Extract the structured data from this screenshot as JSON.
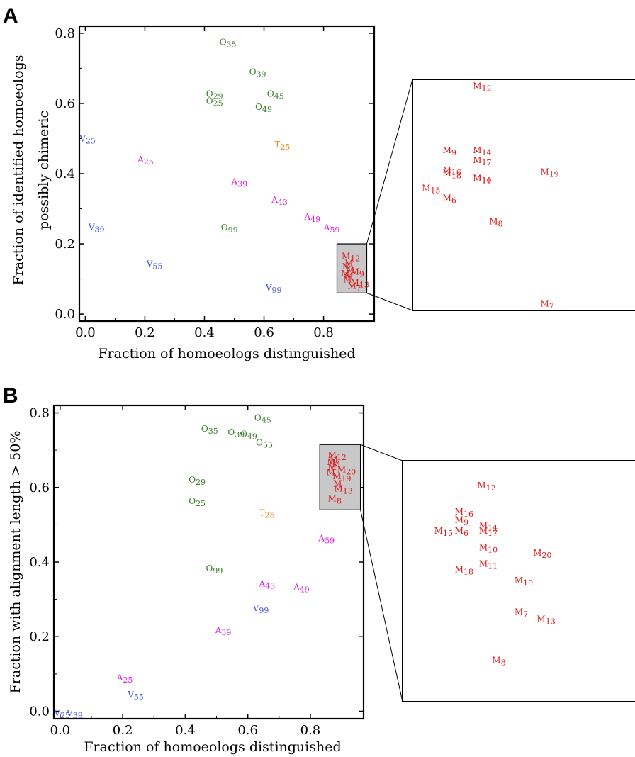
{
  "colors": {
    "M": "#dd1a1a",
    "O": "#3a7d2a",
    "V": "#4a52d6",
    "A": "#e020e0",
    "T": "#ee8c20"
  },
  "chart_data": [
    {
      "panel": "A",
      "type": "scatter",
      "xlabel": "Fraction of homoeologs distinguished",
      "ylabel": [
        "Fraction of identified homoeologs",
        "possibly chimeric"
      ],
      "xlim": [
        -0.02,
        0.97
      ],
      "ylim": [
        -0.02,
        0.82
      ],
      "xticks": [
        "0.0",
        "0.2",
        "0.4",
        "0.6",
        "0.8"
      ],
      "yticks": [
        "0.0",
        "0.2",
        "0.4",
        "0.6",
        "0.8"
      ],
      "points": [
        {
          "l": "O",
          "n": "35",
          "x": 0.46,
          "y": 0.775
        },
        {
          "l": "O",
          "n": "39",
          "x": 0.56,
          "y": 0.69
        },
        {
          "l": "O",
          "n": "29",
          "x": 0.415,
          "y": 0.627
        },
        {
          "l": "O",
          "n": "45",
          "x": 0.62,
          "y": 0.627
        },
        {
          "l": "O",
          "n": "25",
          "x": 0.415,
          "y": 0.607
        },
        {
          "l": "O",
          "n": "49",
          "x": 0.58,
          "y": 0.59
        },
        {
          "l": "V",
          "n": "25",
          "x": -0.01,
          "y": 0.5
        },
        {
          "l": "T",
          "n": "25",
          "x": 0.645,
          "y": 0.483
        },
        {
          "l": "A",
          "n": "25",
          "x": 0.185,
          "y": 0.44
        },
        {
          "l": "A",
          "n": "39",
          "x": 0.5,
          "y": 0.377
        },
        {
          "l": "A",
          "n": "43",
          "x": 0.635,
          "y": 0.325
        },
        {
          "l": "A",
          "n": "49",
          "x": 0.745,
          "y": 0.277
        },
        {
          "l": "A",
          "n": "59",
          "x": 0.81,
          "y": 0.247
        },
        {
          "l": "V",
          "n": "39",
          "x": 0.02,
          "y": 0.248
        },
        {
          "l": "O",
          "n": "99",
          "x": 0.465,
          "y": 0.247
        },
        {
          "l": "V",
          "n": "55",
          "x": 0.215,
          "y": 0.143
        },
        {
          "l": "V",
          "n": "99",
          "x": 0.615,
          "y": 0.075
        }
      ],
      "cluster": [
        {
          "l": "M",
          "n": "12",
          "x": 0.87,
          "y": 0.165
        },
        {
          "l": "M",
          "n": "",
          "x": 0.88,
          "y": 0.145
        },
        {
          "l": "M",
          "n": "",
          "x": 0.872,
          "y": 0.135
        },
        {
          "l": "M",
          "n": "",
          "x": 0.885,
          "y": 0.125
        },
        {
          "l": "M",
          "n": "9",
          "x": 0.9,
          "y": 0.12
        },
        {
          "l": "M",
          "n": "",
          "x": 0.868,
          "y": 0.115
        },
        {
          "l": "M",
          "n": "",
          "x": 0.88,
          "y": 0.108
        },
        {
          "l": "M",
          "n": "",
          "x": 0.875,
          "y": 0.098
        },
        {
          "l": "M",
          "n": "13",
          "x": 0.9,
          "y": 0.09
        },
        {
          "l": "M",
          "n": "7",
          "x": 0.89,
          "y": 0.08
        }
      ],
      "zoom_box": {
        "x0": 0.845,
        "x1": 0.945,
        "y0": 0.06,
        "y1": 0.2
      },
      "zoom_points": [
        {
          "l": "M",
          "n": "12",
          "x": 0.871,
          "y": 0.196
        },
        {
          "l": "M",
          "n": "9",
          "x": 0.858,
          "y": 0.157
        },
        {
          "l": "M",
          "n": "14",
          "x": 0.871,
          "y": 0.157
        },
        {
          "l": "M",
          "n": "17",
          "x": 0.871,
          "y": 0.151
        },
        {
          "l": "M",
          "n": "16",
          "x": 0.858,
          "y": 0.145
        },
        {
          "l": "M",
          "n": "18",
          "x": 0.858,
          "y": 0.143
        },
        {
          "l": "M",
          "n": "10",
          "x": 0.871,
          "y": 0.14
        },
        {
          "l": "M",
          "n": "11",
          "x": 0.871,
          "y": 0.14
        },
        {
          "l": "M",
          "n": "19",
          "x": 0.9,
          "y": 0.144
        },
        {
          "l": "M",
          "n": "15",
          "x": 0.849,
          "y": 0.134
        },
        {
          "l": "M",
          "n": "6",
          "x": 0.858,
          "y": 0.128
        },
        {
          "l": "M",
          "n": "8",
          "x": 0.878,
          "y": 0.114
        },
        {
          "l": "M",
          "n": "7",
          "x": 0.9,
          "y": 0.064
        },
        {
          "l": "M",
          "n": "",
          "x": 0.943,
          "y": 0.098
        }
      ]
    },
    {
      "panel": "B",
      "type": "scatter",
      "xlabel": "Fraction of homoeologs distinguished",
      "ylabel": [
        "Fraction with alignment length > 50%"
      ],
      "xlim": [
        -0.02,
        0.97
      ],
      "ylim": [
        -0.02,
        0.82
      ],
      "xticks": [
        "0.0",
        "0.2",
        "0.4",
        "0.6",
        "0.8"
      ],
      "yticks": [
        "0.0",
        "0.2",
        "0.4",
        "0.6",
        "0.8"
      ],
      "points": [
        {
          "l": "O",
          "n": "45",
          "x": 0.63,
          "y": 0.787
        },
        {
          "l": "O",
          "n": "35",
          "x": 0.46,
          "y": 0.757
        },
        {
          "l": "O",
          "n": "39",
          "x": 0.545,
          "y": 0.748
        },
        {
          "l": "O",
          "n": "49",
          "x": 0.585,
          "y": 0.743
        },
        {
          "l": "O",
          "n": "55",
          "x": 0.635,
          "y": 0.72
        },
        {
          "l": "O",
          "n": "29",
          "x": 0.42,
          "y": 0.62
        },
        {
          "l": "O",
          "n": "25",
          "x": 0.42,
          "y": 0.563
        },
        {
          "l": "T",
          "n": "25",
          "x": 0.645,
          "y": 0.532
        },
        {
          "l": "A",
          "n": "59",
          "x": 0.835,
          "y": 0.464
        },
        {
          "l": "O",
          "n": "99",
          "x": 0.475,
          "y": 0.383
        },
        {
          "l": "A",
          "n": "43",
          "x": 0.645,
          "y": 0.342
        },
        {
          "l": "A",
          "n": "49",
          "x": 0.755,
          "y": 0.333
        },
        {
          "l": "V",
          "n": "99",
          "x": 0.625,
          "y": 0.276
        },
        {
          "l": "A",
          "n": "39",
          "x": 0.505,
          "y": 0.218
        },
        {
          "l": "A",
          "n": "25",
          "x": 0.19,
          "y": 0.09
        },
        {
          "l": "V",
          "n": "55",
          "x": 0.225,
          "y": 0.045
        },
        {
          "l": "V",
          "n": "25",
          "x": -0.01,
          "y": -0.005
        },
        {
          "l": "V",
          "n": "39",
          "x": 0.03,
          "y": -0.005
        }
      ],
      "cluster": [
        {
          "l": "M",
          "n": "12",
          "x": 0.865,
          "y": 0.687
        },
        {
          "l": "M",
          "n": "",
          "x": 0.87,
          "y": 0.675
        },
        {
          "l": "M",
          "n": "",
          "x": 0.862,
          "y": 0.668
        },
        {
          "l": "M",
          "n": "",
          "x": 0.878,
          "y": 0.662
        },
        {
          "l": "M",
          "n": "",
          "x": 0.865,
          "y": 0.655
        },
        {
          "l": "M",
          "n": "20",
          "x": 0.895,
          "y": 0.648
        },
        {
          "l": "M",
          "n": "",
          "x": 0.86,
          "y": 0.64
        },
        {
          "l": "M",
          "n": "19",
          "x": 0.88,
          "y": 0.63
        },
        {
          "l": "M",
          "n": "",
          "x": 0.882,
          "y": 0.61
        },
        {
          "l": "M",
          "n": "13",
          "x": 0.885,
          "y": 0.597
        },
        {
          "l": "M",
          "n": "8",
          "x": 0.865,
          "y": 0.57
        }
      ],
      "zoom_box": {
        "x0": 0.83,
        "x1": 0.96,
        "y0": 0.54,
        "y1": 0.715
      },
      "zoom_points": [
        {
          "l": "M",
          "n": "12",
          "x": 0.87,
          "y": 0.697
        },
        {
          "l": "M",
          "n": "16",
          "x": 0.858,
          "y": 0.678
        },
        {
          "l": "M",
          "n": "9",
          "x": 0.858,
          "y": 0.672
        },
        {
          "l": "M",
          "n": "14",
          "x": 0.871,
          "y": 0.668
        },
        {
          "l": "M",
          "n": "15",
          "x": 0.847,
          "y": 0.664
        },
        {
          "l": "M",
          "n": "6",
          "x": 0.858,
          "y": 0.664
        },
        {
          "l": "M",
          "n": "17",
          "x": 0.871,
          "y": 0.664
        },
        {
          "l": "M",
          "n": "10",
          "x": 0.871,
          "y": 0.652
        },
        {
          "l": "M",
          "n": "20",
          "x": 0.9,
          "y": 0.648
        },
        {
          "l": "M",
          "n": "11",
          "x": 0.871,
          "y": 0.64
        },
        {
          "l": "M",
          "n": "18",
          "x": 0.858,
          "y": 0.636
        },
        {
          "l": "M",
          "n": "19",
          "x": 0.89,
          "y": 0.628
        },
        {
          "l": "M",
          "n": "7",
          "x": 0.89,
          "y": 0.605
        },
        {
          "l": "M",
          "n": "13",
          "x": 0.902,
          "y": 0.6
        },
        {
          "l": "M",
          "n": "8",
          "x": 0.878,
          "y": 0.57
        }
      ]
    }
  ]
}
